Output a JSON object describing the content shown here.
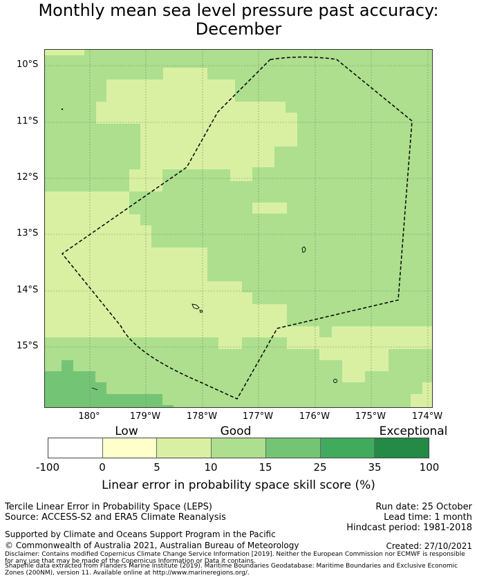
{
  "title": {
    "line1": "Monthly mean sea level pressure past accuracy:",
    "line2": "December"
  },
  "colors": {
    "exceptional": "#238b45",
    "very_good": "#41ab5d",
    "good_high": "#74c476",
    "good": "#addf8e",
    "fair": "#d9f0a3",
    "low": "#ffffcc",
    "none": "#ffffff",
    "land": "#ffffff",
    "dashed_boundary": "#000000"
  },
  "map": {
    "lat_labels": [
      "10°S",
      "11°S",
      "12°S",
      "13°S",
      "14°S",
      "15°S"
    ],
    "lon_labels": [
      "180°",
      "179°W",
      "178°W",
      "177°W",
      "176°W",
      "175°W",
      "174°W"
    ],
    "skill_regions": [
      {
        "category": "fair",
        "description": "Western Lau/Fiji corridor, light band diagonal"
      },
      {
        "category": "good",
        "description": "Eastern Tonga area"
      },
      {
        "category": "good_high",
        "description": "Southwest corner"
      }
    ]
  },
  "colorbar": {
    "categories": [
      "Low",
      "Good",
      "Exceptional"
    ],
    "ticks": [
      "-100",
      "0",
      "5",
      "10",
      "15",
      "25",
      "35",
      "100"
    ],
    "segment_colors": [
      "#ffffff",
      "#ffffcc",
      "#d9f0a3",
      "#addf8e",
      "#74c476",
      "#41ab5d",
      "#238b45"
    ],
    "label": "Linear error in probability space skill score (%)"
  },
  "footer": {
    "method": "Tercile Linear Error in Probability Space (LEPS)",
    "source": "Source: ACCESS-S2 and ERA5 Climate Reanalysis",
    "support": "Supported by Climate and Oceans Support Program in the Pacific",
    "copyright": "© Commonwealth of Australia 2021, Australian Bureau of Meteorology",
    "disclaimer1": "Disclaimer: Contains modified Copernicus Climate Change Service Information [2019]. Neither the European Commission nor ECMWF is responsible for any use that may be made of the Copernicus Information or Data it contains.",
    "disclaimer2": "Shapefile data extracted from Flanders Marine Institute (2019). Maritime Boundaries Geodatabase: Maritime Boundaries and Exclusive Economic Zones (200NM), version 11. Available online at http://www.marineregions.org/.",
    "run_date": "Run date: 25 October",
    "lead_time": "Lead time: 1 month",
    "hindcast": "Hindcast period: 1981-2018",
    "created": "Created: 27/10/2021"
  }
}
